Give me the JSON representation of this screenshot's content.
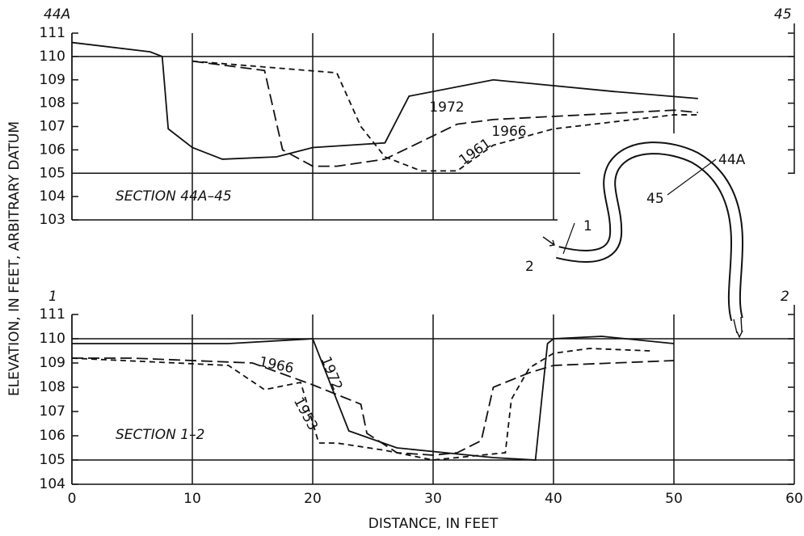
{
  "chart_data": [
    {
      "type": "line",
      "section_label": "SECTION 44A–45",
      "left_end": "44A",
      "right_end": "45",
      "ylabel": "ELEVATION, IN FEET, ARBITRARY DATUM",
      "xlim": [
        0,
        60
      ],
      "ylim": [
        103,
        111
      ],
      "yticks": [
        103,
        104,
        105,
        106,
        107,
        108,
        109,
        110,
        111
      ],
      "series": [
        {
          "name": "1972",
          "color": "#111111",
          "dash": "solid",
          "x": [
            0,
            6.5,
            7.5,
            8,
            10,
            12.5,
            17,
            20,
            26,
            28,
            35,
            45,
            52
          ],
          "values": [
            110.6,
            110.2,
            110,
            106.9,
            106.1,
            105.6,
            105.7,
            106.1,
            106.3,
            108.3,
            109,
            108.5,
            108.2
          ]
        },
        {
          "name": "1966",
          "color": "#111111",
          "dash": "long",
          "x": [
            10,
            16,
            17.5,
            20,
            22,
            26,
            32,
            35,
            50,
            52
          ],
          "values": [
            109.8,
            109.4,
            106,
            105.3,
            105.3,
            105.6,
            107.1,
            107.3,
            107.7,
            107.6
          ]
        },
        {
          "name": "1961",
          "color": "#111111",
          "dash": "short",
          "x": [
            10,
            22,
            24,
            26,
            29,
            32,
            35,
            40,
            45,
            50,
            52
          ],
          "values": [
            109.8,
            109.3,
            107,
            105.7,
            105.1,
            105.1,
            106.2,
            106.9,
            107.2,
            107.5,
            107.5
          ]
        }
      ]
    },
    {
      "type": "line",
      "section_label": "SECTION 1–2",
      "left_end": "1",
      "right_end": "2",
      "xlabel": "DISTANCE, IN FEET",
      "xlim": [
        0,
        60
      ],
      "xticks": [
        0,
        10,
        20,
        30,
        40,
        50,
        60
      ],
      "ylim": [
        104,
        111
      ],
      "yticks": [
        104,
        105,
        106,
        107,
        108,
        109,
        110,
        111
      ],
      "series": [
        {
          "name": "1972",
          "color": "#111111",
          "dash": "solid",
          "x": [
            0,
            13,
            20,
            23,
            27,
            31,
            35,
            38.5,
            39.5,
            40,
            44,
            50
          ],
          "values": [
            109.8,
            109.8,
            110,
            106.2,
            105.5,
            105.3,
            105.1,
            105,
            109.8,
            110,
            110.1,
            109.8
          ]
        },
        {
          "name": "1966",
          "color": "#111111",
          "dash": "long",
          "x": [
            0,
            5,
            15,
            20,
            24,
            24.5,
            27,
            30,
            32,
            34,
            35,
            38,
            40,
            45,
            50
          ],
          "values": [
            109.2,
            109.2,
            109,
            108.1,
            107.3,
            106.1,
            105.3,
            105.2,
            105.3,
            105.8,
            108,
            108.6,
            108.9,
            109,
            109.1
          ]
        },
        {
          "name": "1953",
          "color": "#111111",
          "dash": "short",
          "x": [
            0,
            13,
            16,
            19,
            20.5,
            22,
            26,
            30,
            36,
            36.5,
            38,
            40,
            43,
            48
          ],
          "values": [
            109.2,
            108.9,
            107.9,
            108.2,
            105.7,
            105.7,
            105.4,
            105,
            105.3,
            107.5,
            108.8,
            109.4,
            109.6,
            109.5
          ]
        }
      ]
    }
  ],
  "map": {
    "labels": [
      "44A",
      "45",
      "1",
      "2"
    ]
  }
}
